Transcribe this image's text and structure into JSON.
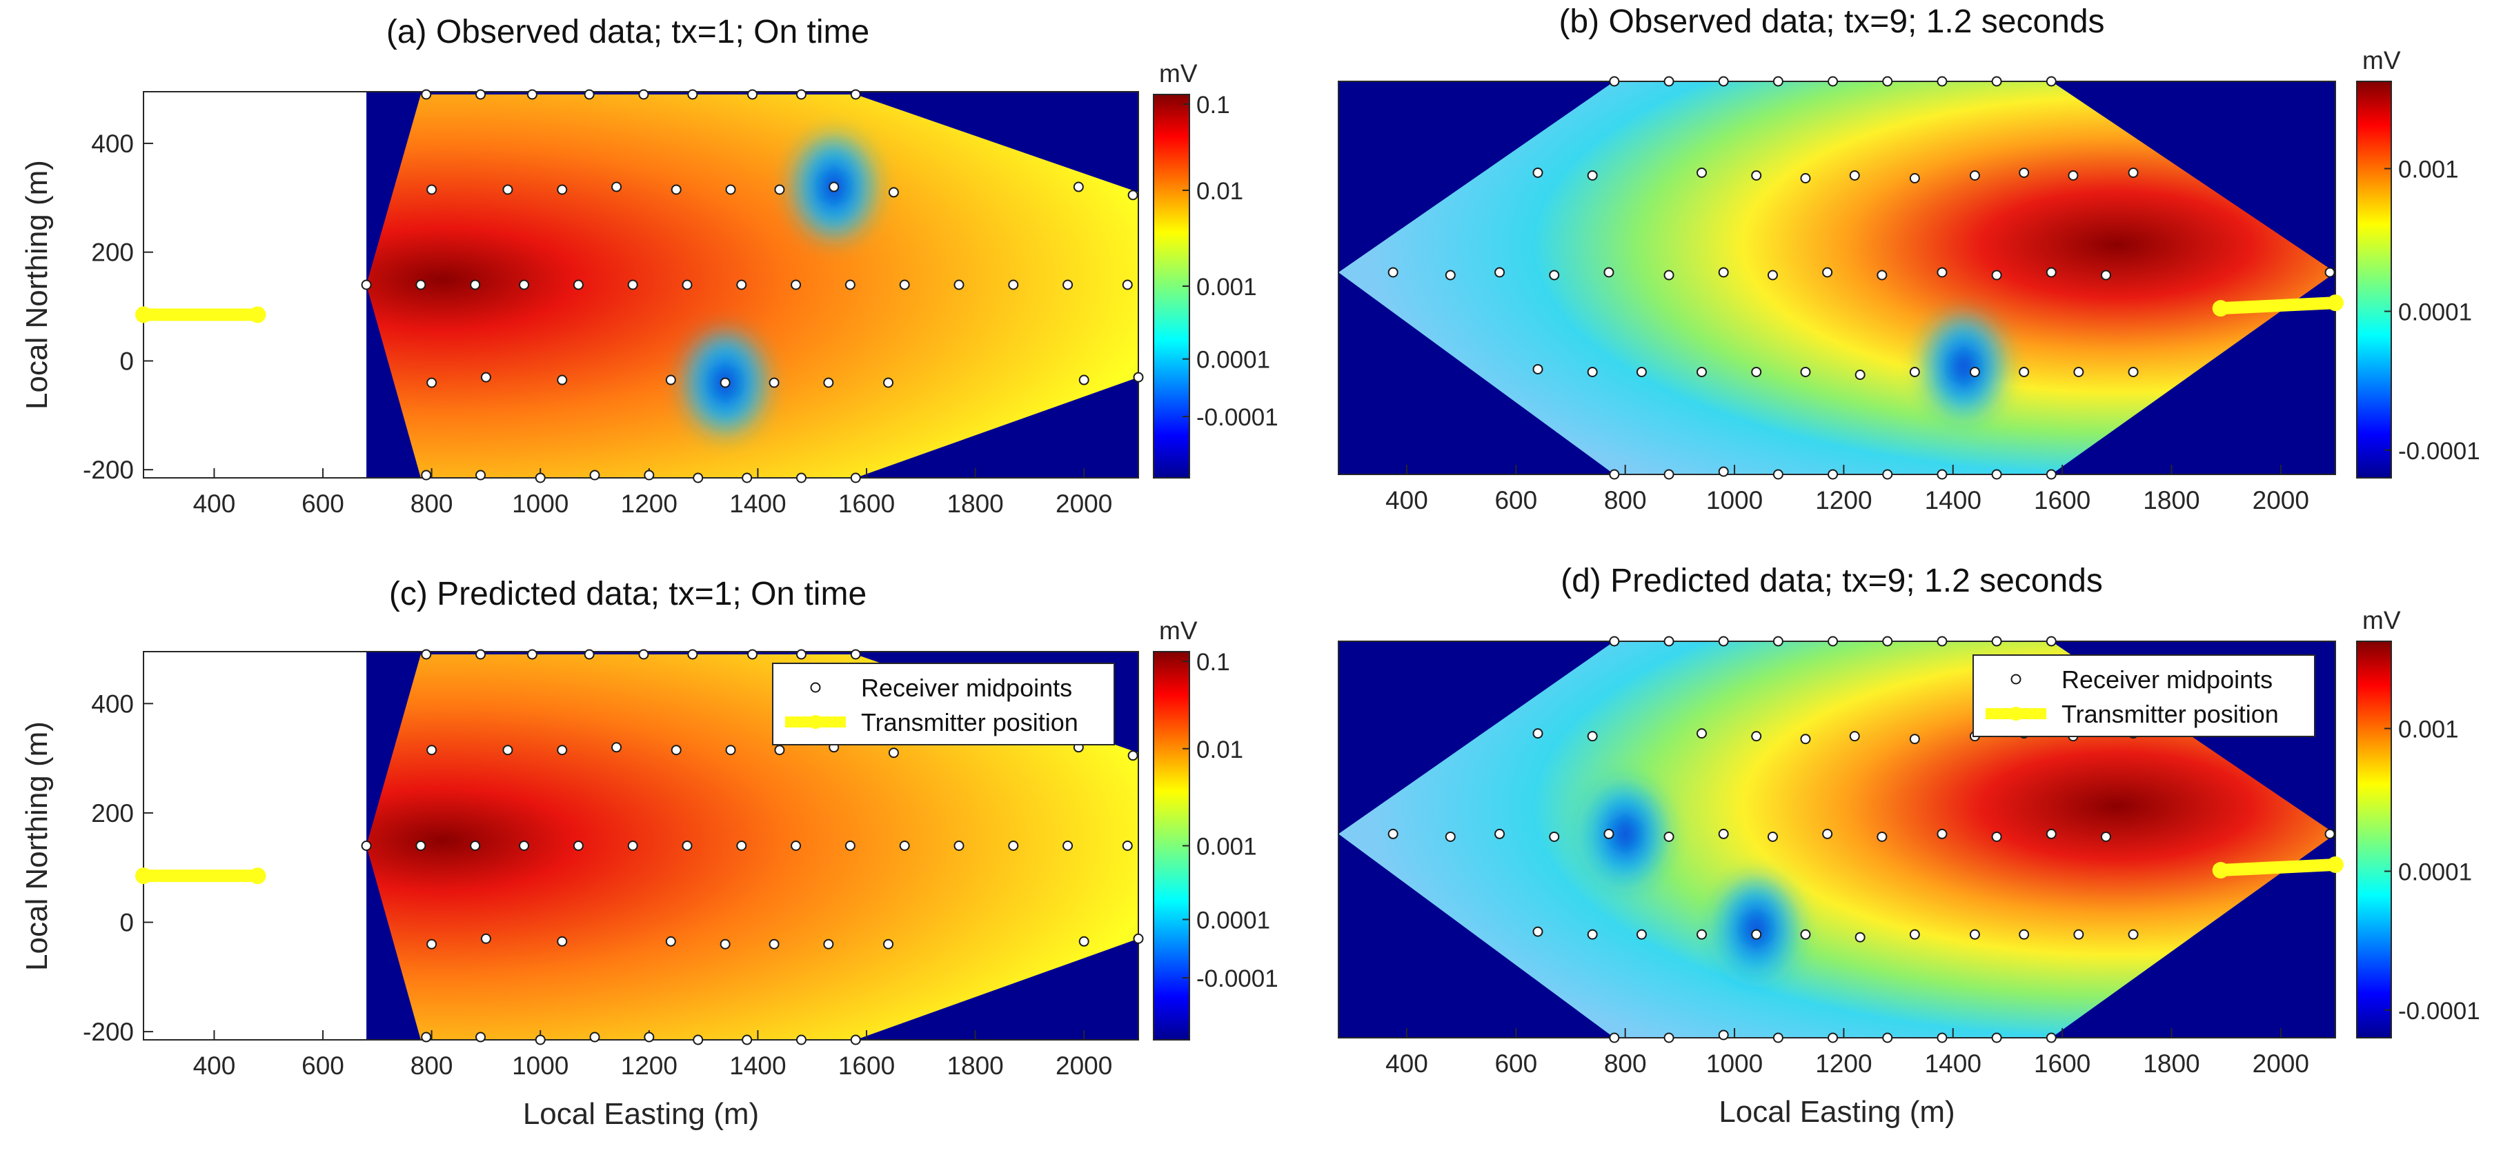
{
  "figure": {
    "panels": [
      {
        "id": "a",
        "title": "(a)  Observed data; tx=1; On time",
        "xlabel": "",
        "ylabel": "Local Northing (m)",
        "unit": "mV",
        "xticks": [
          400,
          600,
          800,
          1000,
          1200,
          1400,
          1600,
          1800,
          2000
        ],
        "yticks": [
          400,
          200,
          0,
          -200
        ],
        "cbar_ticks": [
          "0.1",
          "0.01",
          "0.001",
          "0.0001",
          "-0.0001"
        ],
        "hot_center": [
          820,
          150
        ],
        "cold_spots": [
          [
            1540,
            320
          ],
          [
            1340,
            -40
          ]
        ],
        "show_legend": false
      },
      {
        "id": "b",
        "title": "(b)  Observed data; tx=9; 1.2 seconds",
        "xlabel": "",
        "ylabel": "",
        "unit": "mV",
        "xticks": [
          400,
          600,
          800,
          1000,
          1200,
          1400,
          1600,
          1800,
          2000
        ],
        "yticks": [],
        "cbar_ticks": [
          "0.001",
          "0.0001",
          "-0.0001"
        ],
        "hot_center": [
          1700,
          200
        ],
        "cold_spots": [
          [
            1420,
            -20
          ]
        ],
        "show_legend": false
      },
      {
        "id": "c",
        "title": "(c)  Predicted data; tx=1; On time",
        "xlabel": "Local Easting (m)",
        "ylabel": "Local Northing (m)",
        "unit": "mV",
        "xticks": [
          400,
          600,
          800,
          1000,
          1200,
          1400,
          1600,
          1800,
          2000
        ],
        "yticks": [
          400,
          200,
          0,
          -200
        ],
        "cbar_ticks": [
          "0.1",
          "0.01",
          "0.001",
          "0.0001",
          "-0.0001"
        ],
        "hot_center": [
          820,
          150
        ],
        "cold_spots": [],
        "show_legend": true
      },
      {
        "id": "d",
        "title": "(d)  Predicted data; tx=9; 1.2 seconds",
        "xlabel": "Local Easting (m)",
        "ylabel": "",
        "unit": "mV",
        "xticks": [
          400,
          600,
          800,
          1000,
          1200,
          1400,
          1600,
          1800,
          2000
        ],
        "yticks": [],
        "cbar_ticks": [
          "0.001",
          "0.0001",
          "-0.0001"
        ],
        "hot_center": [
          1700,
          200
        ],
        "cold_spots": [
          [
            800,
            150
          ],
          [
            1040,
            -20
          ]
        ],
        "show_legend": true
      }
    ],
    "legend": {
      "receiver": "Receiver midpoints",
      "transmitter": "Transmitter position"
    }
  },
  "chart_data": [
    {
      "type": "heatmap",
      "title": "(a)  Observed data; tx=1; On time",
      "xlabel": "",
      "ylabel": "Local Northing (m)",
      "xlim": [
        270,
        2100
      ],
      "ylim": [
        -215,
        495
      ],
      "colorbar": {
        "label": "mV",
        "ticks": [
          "0.1",
          "0.01",
          "0.001",
          "0.0001",
          "-0.0001"
        ]
      },
      "survey_polygon": [
        [
          680,
          140
        ],
        [
          780,
          490
        ],
        [
          1580,
          490
        ],
        [
          2100,
          310
        ],
        [
          2100,
          -30
        ],
        [
          1580,
          -215
        ],
        [
          780,
          -215
        ]
      ],
      "receiver_midpoints": [
        [
          790,
          490
        ],
        [
          890,
          490
        ],
        [
          985,
          490
        ],
        [
          1090,
          490
        ],
        [
          1190,
          490
        ],
        [
          1280,
          490
        ],
        [
          1390,
          490
        ],
        [
          1480,
          490
        ],
        [
          1580,
          490
        ],
        [
          800,
          315
        ],
        [
          940,
          315
        ],
        [
          1040,
          315
        ],
        [
          1140,
          320
        ],
        [
          1250,
          315
        ],
        [
          1350,
          315
        ],
        [
          1440,
          315
        ],
        [
          1540,
          320
        ],
        [
          1650,
          310
        ],
        [
          1990,
          320
        ],
        [
          2090,
          305
        ],
        [
          680,
          140
        ],
        [
          780,
          140
        ],
        [
          880,
          140
        ],
        [
          970,
          140
        ],
        [
          1070,
          140
        ],
        [
          1170,
          140
        ],
        [
          1270,
          140
        ],
        [
          1370,
          140
        ],
        [
          1470,
          140
        ],
        [
          1570,
          140
        ],
        [
          1670,
          140
        ],
        [
          1770,
          140
        ],
        [
          1870,
          140
        ],
        [
          1970,
          140
        ],
        [
          2080,
          140
        ],
        [
          800,
          -40
        ],
        [
          900,
          -30
        ],
        [
          1040,
          -35
        ],
        [
          1240,
          -35
        ],
        [
          1340,
          -40
        ],
        [
          1430,
          -40
        ],
        [
          1530,
          -40
        ],
        [
          1640,
          -40
        ],
        [
          2000,
          -35
        ],
        [
          2100,
          -30
        ],
        [
          790,
          -210
        ],
        [
          890,
          -210
        ],
        [
          1000,
          -215
        ],
        [
          1100,
          -210
        ],
        [
          1200,
          -210
        ],
        [
          1290,
          -215
        ],
        [
          1380,
          -215
        ],
        [
          1480,
          -215
        ],
        [
          1580,
          -215
        ]
      ],
      "transmitter": [
        [
          270,
          85
        ],
        [
          480,
          85
        ]
      ]
    },
    {
      "type": "heatmap",
      "title": "(b)  Observed data; tx=9; 1.2 seconds",
      "xlabel": "",
      "ylabel": "",
      "xlim": [
        275,
        2100
      ],
      "ylim": [
        -215,
        495
      ],
      "colorbar": {
        "label": "mV",
        "ticks": [
          "0.001",
          "0.0001",
          "-0.0001"
        ]
      },
      "survey_polygon": [
        [
          275,
          150
        ],
        [
          780,
          495
        ],
        [
          1580,
          495
        ],
        [
          2100,
          150
        ],
        [
          1580,
          -215
        ],
        [
          780,
          -215
        ]
      ],
      "receiver_midpoints": [
        [
          780,
          495
        ],
        [
          880,
          495
        ],
        [
          980,
          495
        ],
        [
          1080,
          495
        ],
        [
          1180,
          495
        ],
        [
          1280,
          495
        ],
        [
          1380,
          495
        ],
        [
          1480,
          495
        ],
        [
          1580,
          495
        ],
        [
          640,
          330
        ],
        [
          740,
          325
        ],
        [
          940,
          330
        ],
        [
          1040,
          325
        ],
        [
          1130,
          320
        ],
        [
          1220,
          325
        ],
        [
          1330,
          320
        ],
        [
          1440,
          325
        ],
        [
          1530,
          330
        ],
        [
          1620,
          325
        ],
        [
          1730,
          330
        ],
        [
          375,
          150
        ],
        [
          480,
          145
        ],
        [
          570,
          150
        ],
        [
          670,
          145
        ],
        [
          770,
          150
        ],
        [
          880,
          145
        ],
        [
          980,
          150
        ],
        [
          1070,
          145
        ],
        [
          1170,
          150
        ],
        [
          1270,
          145
        ],
        [
          1380,
          150
        ],
        [
          1480,
          145
        ],
        [
          1580,
          150
        ],
        [
          1680,
          145
        ],
        [
          2090,
          150
        ],
        [
          640,
          -25
        ],
        [
          740,
          -30
        ],
        [
          830,
          -30
        ],
        [
          940,
          -30
        ],
        [
          1040,
          -30
        ],
        [
          1130,
          -30
        ],
        [
          1230,
          -35
        ],
        [
          1330,
          -30
        ],
        [
          1440,
          -30
        ],
        [
          1530,
          -30
        ],
        [
          1630,
          -30
        ],
        [
          1730,
          -30
        ],
        [
          780,
          -215
        ],
        [
          880,
          -215
        ],
        [
          980,
          -210
        ],
        [
          1080,
          -215
        ],
        [
          1180,
          -215
        ],
        [
          1280,
          -215
        ],
        [
          1380,
          -215
        ],
        [
          1480,
          -215
        ],
        [
          1580,
          -215
        ]
      ],
      "transmitter": [
        [
          1890,
          85
        ],
        [
          2100,
          95
        ]
      ]
    },
    {
      "type": "heatmap",
      "title": "(c)  Predicted data; tx=1; On time",
      "xlabel": "Local Easting (m)",
      "ylabel": "Local Northing (m)",
      "xlim": [
        270,
        2100
      ],
      "ylim": [
        -215,
        495
      ],
      "colorbar": {
        "label": "mV",
        "ticks": [
          "0.1",
          "0.01",
          "0.001",
          "0.0001",
          "-0.0001"
        ]
      },
      "legend": [
        "Receiver midpoints",
        "Transmitter position"
      ],
      "survey_polygon": [
        [
          680,
          140
        ],
        [
          780,
          490
        ],
        [
          1580,
          490
        ],
        [
          2100,
          310
        ],
        [
          2100,
          -30
        ],
        [
          1580,
          -215
        ],
        [
          780,
          -215
        ]
      ],
      "receiver_midpoints": [
        [
          790,
          490
        ],
        [
          890,
          490
        ],
        [
          985,
          490
        ],
        [
          1090,
          490
        ],
        [
          1190,
          490
        ],
        [
          1280,
          490
        ],
        [
          1390,
          490
        ],
        [
          1480,
          490
        ],
        [
          1580,
          490
        ],
        [
          800,
          315
        ],
        [
          940,
          315
        ],
        [
          1040,
          315
        ],
        [
          1140,
          320
        ],
        [
          1250,
          315
        ],
        [
          1350,
          315
        ],
        [
          1440,
          315
        ],
        [
          1540,
          320
        ],
        [
          1650,
          310
        ],
        [
          1990,
          320
        ],
        [
          2090,
          305
        ],
        [
          680,
          140
        ],
        [
          780,
          140
        ],
        [
          880,
          140
        ],
        [
          970,
          140
        ],
        [
          1070,
          140
        ],
        [
          1170,
          140
        ],
        [
          1270,
          140
        ],
        [
          1370,
          140
        ],
        [
          1470,
          140
        ],
        [
          1570,
          140
        ],
        [
          1670,
          140
        ],
        [
          1770,
          140
        ],
        [
          1870,
          140
        ],
        [
          1970,
          140
        ],
        [
          2080,
          140
        ],
        [
          800,
          -40
        ],
        [
          900,
          -30
        ],
        [
          1040,
          -35
        ],
        [
          1240,
          -35
        ],
        [
          1340,
          -40
        ],
        [
          1430,
          -40
        ],
        [
          1530,
          -40
        ],
        [
          1640,
          -40
        ],
        [
          2000,
          -35
        ],
        [
          2100,
          -30
        ],
        [
          790,
          -210
        ],
        [
          890,
          -210
        ],
        [
          1000,
          -215
        ],
        [
          1100,
          -210
        ],
        [
          1200,
          -210
        ],
        [
          1290,
          -215
        ],
        [
          1380,
          -215
        ],
        [
          1480,
          -215
        ],
        [
          1580,
          -215
        ]
      ],
      "transmitter": [
        [
          270,
          85
        ],
        [
          480,
          85
        ]
      ]
    },
    {
      "type": "heatmap",
      "title": "(d)  Predicted data; tx=9; 1.2 seconds",
      "xlabel": "Local Easting (m)",
      "ylabel": "",
      "xlim": [
        275,
        2100
      ],
      "ylim": [
        -215,
        495
      ],
      "colorbar": {
        "label": "mV",
        "ticks": [
          "0.001",
          "0.0001",
          "-0.0001"
        ]
      },
      "legend": [
        "Receiver midpoints",
        "Transmitter position"
      ],
      "survey_polygon": [
        [
          275,
          150
        ],
        [
          780,
          495
        ],
        [
          1580,
          495
        ],
        [
          2100,
          150
        ],
        [
          1580,
          -215
        ],
        [
          780,
          -215
        ]
      ],
      "receiver_midpoints": [
        [
          780,
          495
        ],
        [
          880,
          495
        ],
        [
          980,
          495
        ],
        [
          1080,
          495
        ],
        [
          1180,
          495
        ],
        [
          1280,
          495
        ],
        [
          1380,
          495
        ],
        [
          1480,
          495
        ],
        [
          1580,
          495
        ],
        [
          640,
          330
        ],
        [
          740,
          325
        ],
        [
          940,
          330
        ],
        [
          1040,
          325
        ],
        [
          1130,
          320
        ],
        [
          1220,
          325
        ],
        [
          1330,
          320
        ],
        [
          1440,
          325
        ],
        [
          1530,
          330
        ],
        [
          1620,
          325
        ],
        [
          1730,
          330
        ],
        [
          375,
          150
        ],
        [
          480,
          145
        ],
        [
          570,
          150
        ],
        [
          670,
          145
        ],
        [
          770,
          150
        ],
        [
          880,
          145
        ],
        [
          980,
          150
        ],
        [
          1070,
          145
        ],
        [
          1170,
          150
        ],
        [
          1270,
          145
        ],
        [
          1380,
          150
        ],
        [
          1480,
          145
        ],
        [
          1580,
          150
        ],
        [
          1680,
          145
        ],
        [
          2090,
          150
        ],
        [
          640,
          -25
        ],
        [
          740,
          -30
        ],
        [
          830,
          -30
        ],
        [
          940,
          -30
        ],
        [
          1040,
          -30
        ],
        [
          1130,
          -30
        ],
        [
          1230,
          -35
        ],
        [
          1330,
          -30
        ],
        [
          1440,
          -30
        ],
        [
          1530,
          -30
        ],
        [
          1630,
          -30
        ],
        [
          1730,
          -30
        ],
        [
          780,
          -215
        ],
        [
          880,
          -215
        ],
        [
          980,
          -210
        ],
        [
          1080,
          -215
        ],
        [
          1180,
          -215
        ],
        [
          1280,
          -215
        ],
        [
          1380,
          -215
        ],
        [
          1480,
          -215
        ],
        [
          1580,
          -215
        ]
      ],
      "transmitter": [
        [
          1890,
          85
        ],
        [
          2100,
          95
        ]
      ]
    }
  ]
}
